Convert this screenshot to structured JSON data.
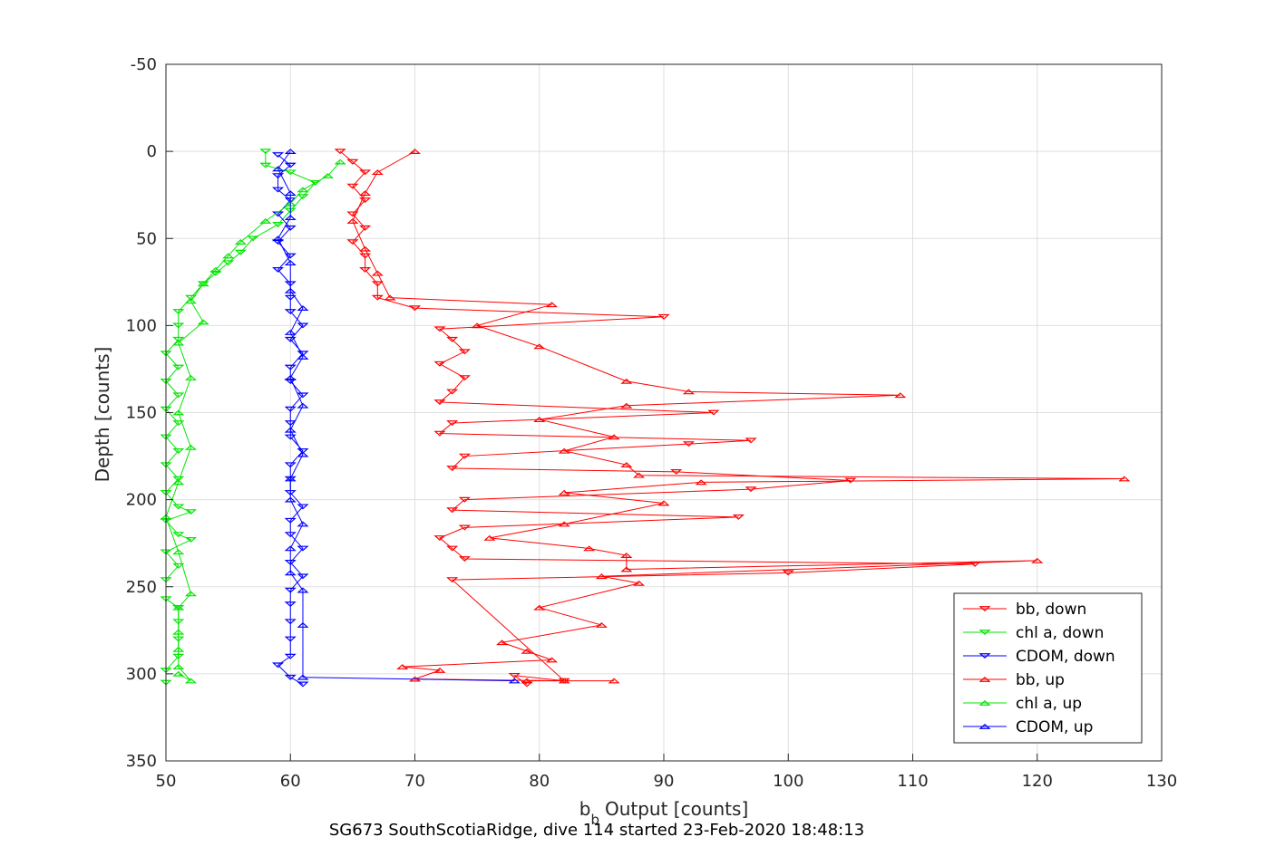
{
  "chart_data": {
    "type": "scatter",
    "xlabel": "Output [counts]",
    "xlabel_prefix": "b",
    "xlabel_subscript": "b",
    "ylabel": "Depth [counts]",
    "caption": "SG673 SouthScotiaRidge, dive 114 started 23-Feb-2020 18:48:13",
    "xlim": [
      50,
      130
    ],
    "ylim": [
      -50,
      350
    ],
    "y_reversed": true,
    "grid": true,
    "legend_position": "bottom-right",
    "xticks": [
      "50",
      "60",
      "70",
      "80",
      "90",
      "100",
      "110",
      "120",
      "130"
    ],
    "yticks": [
      "-50",
      "0",
      "50",
      "100",
      "150",
      "200",
      "250",
      "300",
      "350"
    ],
    "series": [
      {
        "name": "bb, down",
        "color": "#ff0000",
        "marker": "triangle-down",
        "points": [
          [
            64,
            0
          ],
          [
            65,
            6
          ],
          [
            66,
            12
          ],
          [
            65,
            20
          ],
          [
            66,
            28
          ],
          [
            65,
            36
          ],
          [
            66,
            44
          ],
          [
            65,
            52
          ],
          [
            66,
            60
          ],
          [
            66,
            68
          ],
          [
            67,
            76
          ],
          [
            67,
            84
          ],
          [
            70,
            90
          ],
          [
            90,
            95
          ],
          [
            72,
            102
          ],
          [
            73,
            108
          ],
          [
            74,
            115
          ],
          [
            72,
            122
          ],
          [
            74,
            130
          ],
          [
            73,
            138
          ],
          [
            72,
            144
          ],
          [
            94,
            150
          ],
          [
            73,
            156
          ],
          [
            72,
            162
          ],
          [
            97,
            166
          ],
          [
            92,
            168
          ],
          [
            74,
            175
          ],
          [
            73,
            182
          ],
          [
            91,
            184
          ],
          [
            105,
            189
          ],
          [
            97,
            194
          ],
          [
            74,
            200
          ],
          [
            73,
            206
          ],
          [
            96,
            210
          ],
          [
            74,
            216
          ],
          [
            72,
            222
          ],
          [
            73,
            228
          ],
          [
            74,
            234
          ],
          [
            115,
            237
          ],
          [
            100,
            242
          ],
          [
            73,
            246
          ],
          [
            82,
            304
          ],
          [
            78,
            301
          ],
          [
            79,
            306
          ]
        ]
      },
      {
        "name": "chl a, down",
        "color": "#00e600",
        "marker": "triangle-down",
        "points": [
          [
            58,
            0
          ],
          [
            58,
            8
          ],
          [
            60,
            12
          ],
          [
            62,
            18
          ],
          [
            61,
            26
          ],
          [
            60,
            34
          ],
          [
            59,
            42
          ],
          [
            57,
            50
          ],
          [
            56,
            58
          ],
          [
            55,
            64
          ],
          [
            54,
            70
          ],
          [
            53,
            76
          ],
          [
            52,
            84
          ],
          [
            51,
            92
          ],
          [
            51,
            100
          ],
          [
            51,
            108
          ],
          [
            50,
            116
          ],
          [
            51,
            124
          ],
          [
            50,
            132
          ],
          [
            51,
            140
          ],
          [
            50,
            148
          ],
          [
            51,
            156
          ],
          [
            50,
            164
          ],
          [
            51,
            172
          ],
          [
            50,
            180
          ],
          [
            51,
            188
          ],
          [
            50,
            196
          ],
          [
            51,
            204
          ],
          [
            52,
            207
          ],
          [
            50,
            212
          ],
          [
            51,
            220
          ],
          [
            52,
            223
          ],
          [
            50,
            230
          ],
          [
            51,
            238
          ],
          [
            50,
            246
          ],
          [
            50,
            257
          ],
          [
            51,
            262
          ],
          [
            51,
            270
          ],
          [
            51,
            280
          ],
          [
            51,
            290
          ],
          [
            50,
            298
          ],
          [
            50,
            305
          ]
        ]
      },
      {
        "name": "CDOM, down",
        "color": "#0000ff",
        "marker": "triangle-down",
        "points": [
          [
            59,
            2
          ],
          [
            60,
            8
          ],
          [
            59,
            14
          ],
          [
            59,
            22
          ],
          [
            60,
            28
          ],
          [
            59,
            36
          ],
          [
            60,
            44
          ],
          [
            59,
            52
          ],
          [
            60,
            60
          ],
          [
            59,
            68
          ],
          [
            60,
            76
          ],
          [
            60,
            84
          ],
          [
            60,
            92
          ],
          [
            61,
            100
          ],
          [
            60,
            108
          ],
          [
            61,
            116
          ],
          [
            60,
            124
          ],
          [
            60,
            132
          ],
          [
            61,
            140
          ],
          [
            60,
            148
          ],
          [
            60,
            156
          ],
          [
            60,
            164
          ],
          [
            61,
            172
          ],
          [
            60,
            180
          ],
          [
            60,
            188
          ],
          [
            60,
            196
          ],
          [
            61,
            204
          ],
          [
            60,
            212
          ],
          [
            60,
            220
          ],
          [
            61,
            228
          ],
          [
            60,
            236
          ],
          [
            61,
            244
          ],
          [
            60,
            252
          ],
          [
            60,
            260
          ],
          [
            60,
            270
          ],
          [
            60,
            280
          ],
          [
            60,
            290
          ],
          [
            59,
            295
          ],
          [
            60,
            302
          ],
          [
            61,
            306
          ]
        ]
      },
      {
        "name": "bb, up",
        "color": "#ff0000",
        "marker": "triangle-up",
        "points": [
          [
            70,
            0
          ],
          [
            67,
            12
          ],
          [
            66,
            24
          ],
          [
            65,
            40
          ],
          [
            66,
            56
          ],
          [
            67,
            70
          ],
          [
            68,
            84
          ],
          [
            81,
            88
          ],
          [
            75,
            100
          ],
          [
            80,
            112
          ],
          [
            87,
            132
          ],
          [
            92,
            138
          ],
          [
            109,
            140
          ],
          [
            87,
            146
          ],
          [
            80,
            154
          ],
          [
            86,
            164
          ],
          [
            82,
            172
          ],
          [
            87,
            180
          ],
          [
            88,
            186
          ],
          [
            127,
            188
          ],
          [
            93,
            190
          ],
          [
            82,
            196
          ],
          [
            90,
            202
          ],
          [
            82,
            214
          ],
          [
            76,
            222
          ],
          [
            84,
            228
          ],
          [
            87,
            232
          ],
          [
            87,
            240
          ],
          [
            120,
            235
          ],
          [
            85,
            244
          ],
          [
            88,
            248
          ],
          [
            80,
            262
          ],
          [
            85,
            272
          ],
          [
            77,
            282
          ],
          [
            79,
            287
          ],
          [
            81,
            292
          ],
          [
            69,
            296
          ],
          [
            72,
            298
          ],
          [
            70,
            303
          ],
          [
            82,
            304
          ],
          [
            86,
            304
          ],
          [
            79,
            304
          ]
        ]
      },
      {
        "name": "chl a, up",
        "color": "#00e600",
        "marker": "triangle-up",
        "points": [
          [
            64,
            6
          ],
          [
            63,
            14
          ],
          [
            61,
            22
          ],
          [
            60,
            30
          ],
          [
            58,
            40
          ],
          [
            56,
            52
          ],
          [
            55,
            60
          ],
          [
            54,
            68
          ],
          [
            53,
            76
          ],
          [
            52,
            86
          ],
          [
            53,
            98
          ],
          [
            51,
            110
          ],
          [
            52,
            130
          ],
          [
            51,
            150
          ],
          [
            52,
            170
          ],
          [
            51,
            190
          ],
          [
            50,
            210
          ],
          [
            51,
            230
          ],
          [
            52,
            254
          ],
          [
            51,
            262
          ],
          [
            51,
            276
          ],
          [
            51,
            286
          ],
          [
            51,
            296
          ],
          [
            52,
            304
          ],
          [
            51,
            300
          ]
        ]
      },
      {
        "name": "CDOM, up",
        "color": "#0000ff",
        "marker": "triangle-up",
        "points": [
          [
            60,
            0
          ],
          [
            59,
            10
          ],
          [
            60,
            24
          ],
          [
            60,
            38
          ],
          [
            59,
            50
          ],
          [
            60,
            64
          ],
          [
            60,
            80
          ],
          [
            61,
            90
          ],
          [
            60,
            104
          ],
          [
            61,
            118
          ],
          [
            60,
            130
          ],
          [
            61,
            146
          ],
          [
            60,
            160
          ],
          [
            61,
            174
          ],
          [
            60,
            188
          ],
          [
            60,
            200
          ],
          [
            61,
            214
          ],
          [
            60,
            228
          ],
          [
            60,
            242
          ],
          [
            61,
            252
          ],
          [
            61,
            272
          ],
          [
            61,
            302
          ],
          [
            78,
            304
          ]
        ]
      }
    ]
  }
}
